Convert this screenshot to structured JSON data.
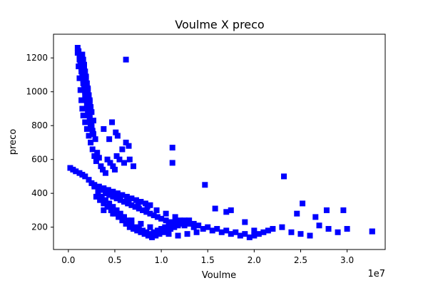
{
  "chart_data": {
    "type": "scatter",
    "title": "Voulme X preco",
    "xlabel": "Voulme",
    "ylabel": "preco",
    "x_offset_label": "1e7",
    "xlim": [
      -0.16,
      3.41
    ],
    "ylim": [
      68,
      1340
    ],
    "x_unit_multiplier": 10000000,
    "x_ticks": [
      0.0,
      0.5,
      1.0,
      1.5,
      2.0,
      2.5,
      3.0
    ],
    "x_tick_labels": [
      "0.0",
      "0.5",
      "1.0",
      "1.5",
      "2.0",
      "2.5",
      "3.0"
    ],
    "y_ticks": [
      200,
      400,
      600,
      800,
      1000,
      1200
    ],
    "y_tick_labels": [
      "200",
      "400",
      "600",
      "800",
      "1000",
      "1200"
    ],
    "grid": false,
    "legend": "none",
    "marker": "square",
    "marker_color": "#0000ff",
    "series": [
      {
        "x": [
          0.1,
          0.11,
          0.12,
          0.13,
          0.14,
          0.15,
          0.16,
          0.18,
          0.2,
          0.22,
          0.24,
          0.26,
          0.28,
          0.3,
          0.1,
          0.12,
          0.14,
          0.16,
          0.18,
          0.2,
          0.22,
          0.24,
          0.26,
          0.29,
          0.11,
          0.13,
          0.15,
          0.17,
          0.19,
          0.21,
          0.23,
          0.25,
          0.27,
          0.12,
          0.14,
          0.16,
          0.18,
          0.2,
          0.22,
          0.24,
          0.26,
          0.13,
          0.15,
          0.17,
          0.19,
          0.21,
          0.23,
          0.25,
          0.14,
          0.16,
          0.18,
          0.2,
          0.22,
          0.24,
          0.15,
          0.17,
          0.19,
          0.21,
          0.23,
          0.25,
          0.27,
          0.16,
          0.18,
          0.2,
          0.22,
          0.24,
          0.17,
          0.19,
          0.21,
          0.23,
          0.35,
          0.37,
          0.4,
          0.42,
          0.45,
          0.48,
          0.5,
          0.52,
          0.55,
          0.6,
          0.62,
          0.65,
          0.31,
          0.33,
          0.38,
          0.44,
          0.47,
          0.51,
          0.53,
          0.58,
          0.66,
          0.7
        ],
        "y": [
          1230,
          1150,
          1080,
          1010,
          950,
          900,
          860,
          820,
          780,
          740,
          700,
          660,
          620,
          590,
          1260,
          1190,
          1120,
          1050,
          980,
          920,
          870,
          800,
          760,
          720,
          1240,
          1170,
          1100,
          1030,
          960,
          890,
          840,
          790,
          750,
          1210,
          1140,
          1070,
          1000,
          930,
          860,
          810,
          770,
          1180,
          1110,
          1040,
          970,
          900,
          850,
          800,
          1200,
          1130,
          1060,
          990,
          920,
          880,
          1220,
          1150,
          1080,
          1010,
          940,
          880,
          830,
          1190,
          1120,
          1050,
          980,
          910,
          1160,
          1090,
          1020,
          950,
          560,
          540,
          520,
          600,
          580,
          560,
          540,
          620,
          600,
          580,
          700,
          680,
          640,
          610,
          780,
          720,
          820,
          760,
          740,
          660,
          600,
          560
        ]
      },
      {
        "x": [
          0.02,
          0.05,
          0.08,
          0.12,
          0.15,
          0.18,
          0.22,
          0.25,
          0.28,
          0.32,
          0.36,
          0.4,
          0.44,
          0.48,
          0.52,
          0.56,
          0.6,
          0.64,
          0.68,
          0.72,
          0.76,
          0.8,
          0.84,
          0.88,
          0.92,
          0.96,
          1.0,
          1.05,
          1.1,
          1.15,
          1.2,
          1.25,
          1.3,
          1.35,
          1.4,
          1.45,
          1.5,
          1.55,
          1.6,
          1.65,
          1.7,
          1.75,
          1.8,
          1.85,
          1.9,
          1.95,
          2.0,
          2.05,
          2.1,
          2.15,
          2.2,
          2.3,
          2.4,
          2.5,
          2.6,
          2.7,
          2.8,
          2.9,
          3.0,
          3.27
        ],
        "y": [
          550,
          540,
          530,
          520,
          510,
          500,
          480,
          460,
          440,
          430,
          420,
          400,
          390,
          380,
          370,
          360,
          350,
          340,
          330,
          320,
          310,
          300,
          290,
          280,
          270,
          260,
          250,
          240,
          230,
          220,
          230,
          210,
          220,
          200,
          210,
          190,
          200,
          180,
          190,
          170,
          180,
          160,
          170,
          150,
          160,
          140,
          150,
          160,
          170,
          180,
          190,
          200,
          170,
          160,
          150,
          210,
          190,
          170,
          190,
          175
        ]
      },
      {
        "x": [
          0.3,
          0.34,
          0.38,
          0.42,
          0.46,
          0.5,
          0.54,
          0.58,
          0.62,
          0.66,
          0.7,
          0.74,
          0.78,
          0.82,
          0.86,
          0.9,
          0.94,
          0.98,
          1.02,
          1.06,
          1.1,
          1.14,
          1.18,
          1.22,
          1.26,
          1.3,
          0.32,
          0.36,
          0.4,
          0.44,
          0.48,
          0.52,
          0.56,
          0.6,
          0.64,
          0.68,
          0.72,
          0.76,
          0.8,
          0.84,
          0.88,
          0.92,
          0.96,
          1.0,
          1.04,
          1.08,
          1.12,
          1.16,
          1.2,
          0.35,
          0.45,
          0.55,
          0.65,
          0.75,
          0.85,
          0.95,
          1.05,
          1.15,
          1.25,
          1.35,
          0.38,
          0.48,
          0.58,
          0.68,
          0.78,
          0.88,
          0.98,
          1.08,
          1.18,
          1.28,
          1.38
        ],
        "y": [
          380,
          360,
          340,
          320,
          300,
          280,
          260,
          240,
          220,
          200,
          190,
          180,
          170,
          160,
          150,
          140,
          150,
          160,
          170,
          180,
          190,
          200,
          210,
          220,
          230,
          240,
          400,
          380,
          360,
          340,
          320,
          300,
          280,
          260,
          240,
          220,
          200,
          190,
          180,
          170,
          160,
          170,
          180,
          190,
          200,
          210,
          220,
          230,
          240,
          420,
          400,
          380,
          360,
          340,
          320,
          300,
          280,
          260,
          240,
          220,
          300,
          280,
          260,
          240,
          220,
          200,
          180,
          160,
          150,
          160,
          170
        ]
      },
      {
        "x": [
          0.28,
          0.33,
          0.38,
          0.43,
          0.48,
          0.53,
          0.58,
          0.63,
          0.68,
          0.73,
          0.78,
          0.83,
          0.88
        ],
        "y": [
          450,
          440,
          430,
          420,
          410,
          400,
          390,
          380,
          370,
          360,
          350,
          340,
          330
        ]
      },
      {
        "x": [
          0.62,
          1.12,
          1.12,
          1.47,
          2.32,
          2.52,
          2.46,
          2.96,
          2.78,
          2.66,
          3.27,
          2.0,
          1.9,
          1.7,
          1.75,
          1.58
        ],
        "y": [
          1190,
          670,
          580,
          450,
          500,
          340,
          280,
          300,
          300,
          260,
          175,
          180,
          230,
          290,
          300,
          310
        ]
      }
    ]
  }
}
